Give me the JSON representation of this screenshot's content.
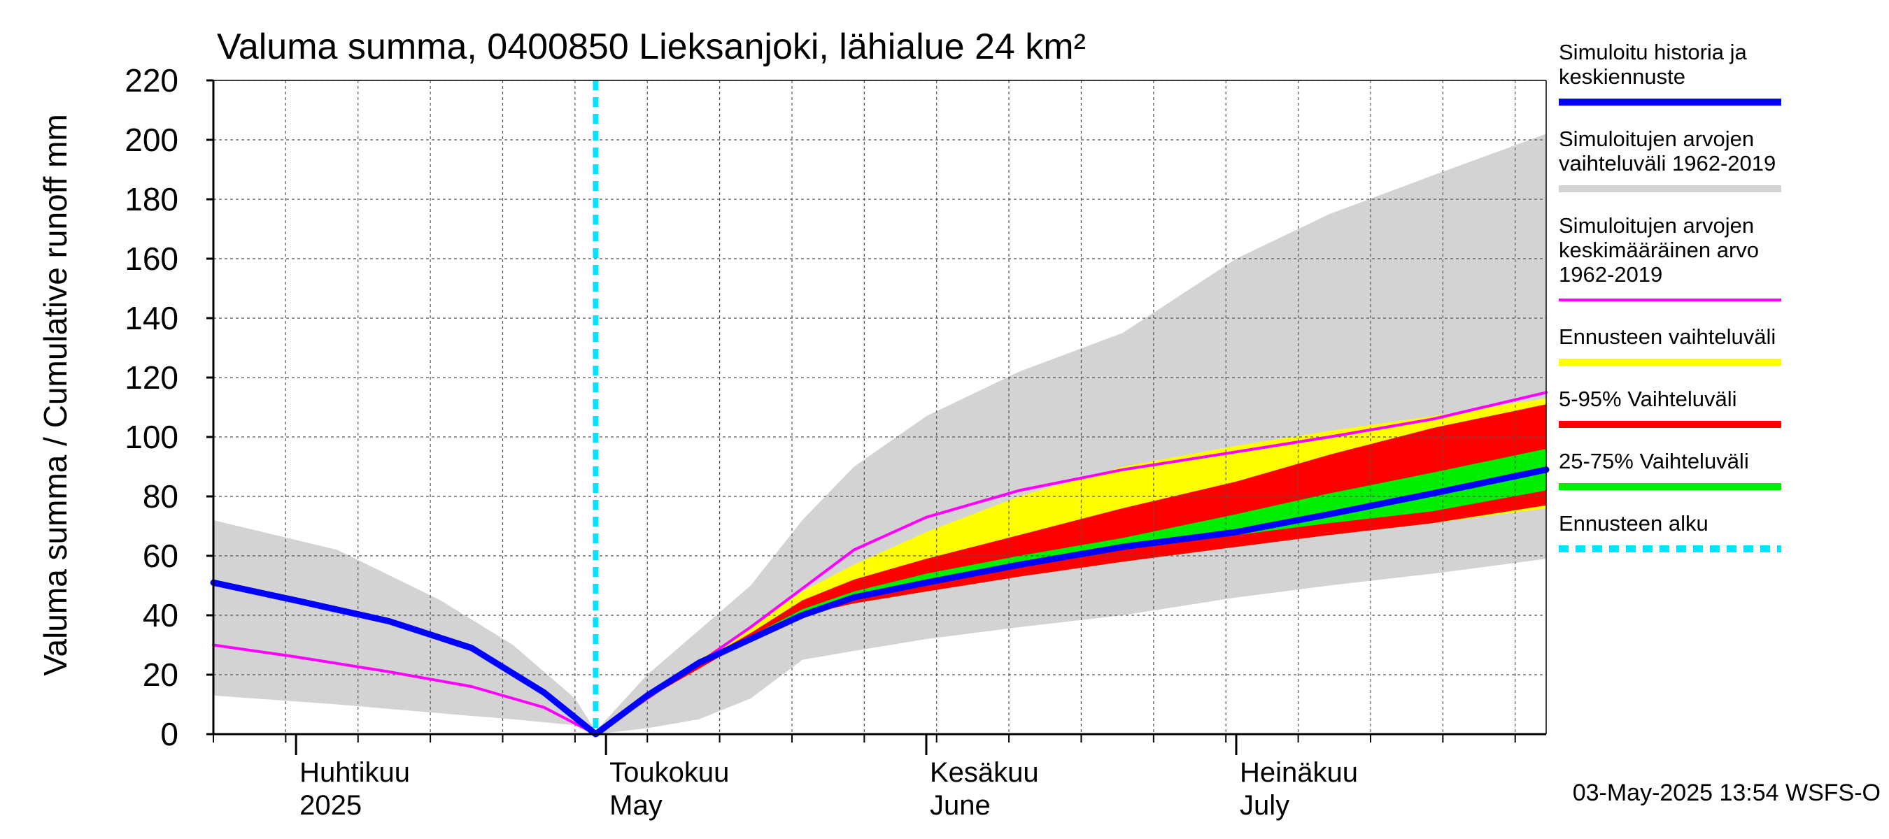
{
  "chart_data": {
    "type": "area",
    "title": "Valuma summa, 0400850 Lieksanjoki, lähialue 24 km²",
    "ylabel": "Valuma summa / Cumulative runoff    mm",
    "ylim": [
      0,
      220
    ],
    "y_ticks": [
      "0",
      "20",
      "40",
      "60",
      "80",
      "100",
      "120",
      "140",
      "160",
      "180",
      "200",
      "220"
    ],
    "xlim": [
      "2025-03-24",
      "2025-07-31"
    ],
    "grid": true,
    "legend_position": "right",
    "month_labels": [
      {
        "fi": "Huhtikuu",
        "en": "2025",
        "date": "2025-04-01"
      },
      {
        "fi": "Toukokuu",
        "en": "May",
        "date": "2025-05-01"
      },
      {
        "fi": "Kesäkuu",
        "en": "June",
        "date": "2025-06-01"
      },
      {
        "fi": "Heinäkuu",
        "en": "July",
        "date": "2025-07-01"
      }
    ],
    "forecast_start": "2025-04-30",
    "footer": "03-May-2025 13:54 WSFS-O",
    "colors": {
      "history_range": "#d3d3d3",
      "forecast_range": "#ffff00",
      "p5_95": "#ff0000",
      "p25_75": "#00ee00",
      "mean": "#ff00ff",
      "median": "#0000ff",
      "forecast_start": "#00e5ff"
    },
    "series": [
      {
        "name": "Simuloitujen arvojen vaihteluväli 1962-2019",
        "kind": "band",
        "x": [
          "2025-03-24",
          "2025-04-05",
          "2025-04-15",
          "2025-04-22",
          "2025-04-28",
          "2025-04-30",
          "2025-05-05",
          "2025-05-10",
          "2025-05-15",
          "2025-05-20",
          "2025-05-25",
          "2025-06-01",
          "2025-06-10",
          "2025-06-20",
          "2025-07-01",
          "2025-07-10",
          "2025-07-20",
          "2025-07-31"
        ],
        "upper": [
          72,
          62,
          45,
          30,
          12,
          1,
          20,
          35,
          50,
          72,
          90,
          107,
          122,
          135,
          160,
          175,
          188,
          202
        ],
        "lower": [
          13,
          10,
          7,
          5,
          3,
          0,
          2,
          5,
          12,
          25,
          28,
          32,
          36,
          40,
          46,
          50,
          54,
          59
        ]
      },
      {
        "name": "Ennusteen vaihteluväli",
        "kind": "band",
        "x": [
          "2025-04-30",
          "2025-05-05",
          "2025-05-10",
          "2025-05-15",
          "2025-05-20",
          "2025-05-25",
          "2025-06-01",
          "2025-06-10",
          "2025-06-20",
          "2025-07-01",
          "2025-07-10",
          "2025-07-20",
          "2025-07-31"
        ],
        "upper": [
          1,
          13,
          25,
          36,
          48,
          57,
          68,
          80,
          90,
          97,
          102,
          107,
          113
        ],
        "lower": [
          1,
          12,
          22,
          33,
          40,
          44,
          48,
          53,
          58,
          63,
          67,
          71,
          76
        ]
      },
      {
        "name": "5-95% Vaihteluväli",
        "kind": "band",
        "x": [
          "2025-04-30",
          "2025-05-05",
          "2025-05-10",
          "2025-05-15",
          "2025-05-20",
          "2025-05-25",
          "2025-06-01",
          "2025-06-10",
          "2025-06-20",
          "2025-07-01",
          "2025-07-10",
          "2025-07-20",
          "2025-07-31"
        ],
        "upper": [
          1,
          13,
          24,
          34,
          45,
          52,
          59,
          67,
          76,
          85,
          94,
          103,
          111
        ],
        "lower": [
          1,
          12,
          22,
          32,
          40,
          44,
          48,
          53,
          58,
          63,
          67,
          71,
          77
        ]
      },
      {
        "name": "25-75% Vaihteluväli",
        "kind": "band",
        "x": [
          "2025-04-30",
          "2025-05-05",
          "2025-05-10",
          "2025-05-15",
          "2025-05-20",
          "2025-05-25",
          "2025-06-01",
          "2025-06-10",
          "2025-06-20",
          "2025-07-01",
          "2025-07-10",
          "2025-07-20",
          "2025-07-31"
        ],
        "upper": [
          1,
          13,
          24,
          33,
          42,
          48,
          54,
          60,
          66,
          74,
          81,
          88,
          96
        ],
        "lower": [
          1,
          12,
          23,
          32,
          41,
          46,
          50,
          56,
          62,
          67,
          71,
          75,
          82
        ]
      },
      {
        "name": "Simuloitujen arvojen keskimääräinen arvo 1962-2019",
        "kind": "line",
        "x": [
          "2025-03-24",
          "2025-04-01",
          "2025-04-10",
          "2025-04-18",
          "2025-04-25",
          "2025-04-30",
          "2025-05-05",
          "2025-05-10",
          "2025-05-15",
          "2025-05-20",
          "2025-05-25",
          "2025-06-01",
          "2025-06-10",
          "2025-06-20",
          "2025-07-01",
          "2025-07-10",
          "2025-07-20",
          "2025-07-31"
        ],
        "y": [
          30,
          26,
          21,
          16,
          9,
          0,
          12,
          24,
          36,
          49,
          62,
          73,
          82,
          89,
          95,
          100,
          106,
          115
        ]
      },
      {
        "name": "Simuloitu historia ja keskiennuste",
        "kind": "line",
        "x": [
          "2025-03-24",
          "2025-04-01",
          "2025-04-10",
          "2025-04-18",
          "2025-04-25",
          "2025-04-30",
          "2025-05-05",
          "2025-05-10",
          "2025-05-15",
          "2025-05-20",
          "2025-05-25",
          "2025-06-01",
          "2025-06-10",
          "2025-06-20",
          "2025-07-01",
          "2025-07-10",
          "2025-07-20",
          "2025-07-31"
        ],
        "y": [
          51,
          45,
          38,
          29,
          14,
          0,
          13,
          24,
          32,
          40,
          46,
          51,
          57,
          63,
          68,
          74,
          81,
          89
        ]
      }
    ]
  },
  "legend": [
    {
      "label_lines": [
        "Simuloitu historia ja",
        "keskiennuste"
      ],
      "color": "#0000ff",
      "style": "solid"
    },
    {
      "label_lines": [
        "Simuloitujen arvojen",
        "vaihteluväli 1962-2019"
      ],
      "color": "#d3d3d3",
      "style": "solid"
    },
    {
      "label_lines": [
        "Simuloitujen arvojen",
        "keskimääräinen arvo",
        "   1962-2019"
      ],
      "color": "#ff00ff",
      "style": "thin"
    },
    {
      "label_lines": [
        "Ennusteen vaihteluväli"
      ],
      "color": "#ffff00",
      "style": "solid"
    },
    {
      "label_lines": [
        "5-95% Vaihteluväli"
      ],
      "color": "#ff0000",
      "style": "solid"
    },
    {
      "label_lines": [
        "25-75% Vaihteluväli"
      ],
      "color": "#00ee00",
      "style": "solid"
    },
    {
      "label_lines": [
        "Ennusteen alku"
      ],
      "color": "#00e5ff",
      "style": "dashed"
    }
  ]
}
